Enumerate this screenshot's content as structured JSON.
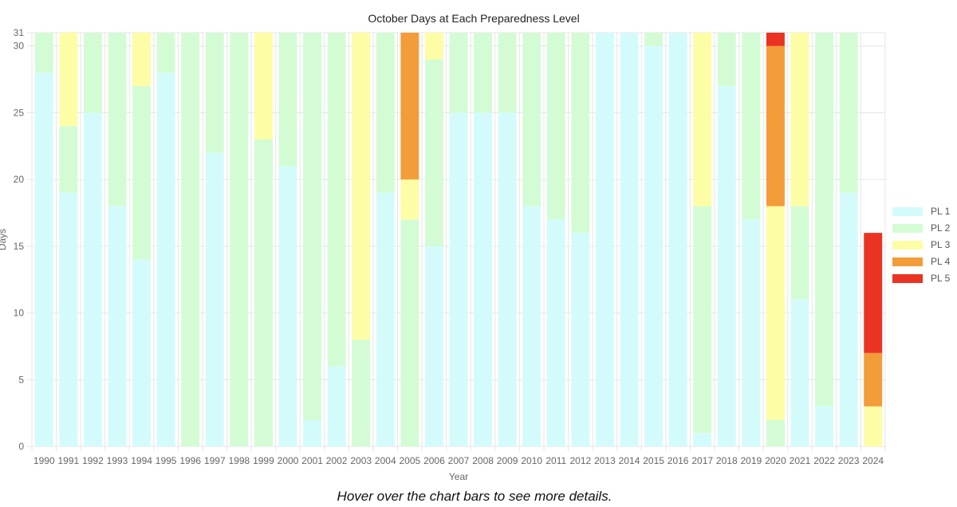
{
  "note": "Hover over the chart bars to see more details.",
  "chart_data": {
    "type": "bar",
    "stacked": true,
    "title": "October Days at Each Preparedness Level",
    "xlabel": "Year",
    "ylabel": "Days",
    "ylim": [
      0,
      31
    ],
    "yticks": [
      0,
      5,
      10,
      15,
      20,
      25,
      30,
      31
    ],
    "grid": true,
    "legend_position": "right",
    "categories": [
      "1990",
      "1991",
      "1992",
      "1993",
      "1994",
      "1995",
      "1996",
      "1997",
      "1998",
      "1999",
      "2000",
      "2001",
      "2002",
      "2003",
      "2004",
      "2005",
      "2006",
      "2007",
      "2008",
      "2009",
      "2010",
      "2011",
      "2012",
      "2013",
      "2014",
      "2015",
      "2016",
      "2017",
      "2018",
      "2019",
      "2020",
      "2021",
      "2022",
      "2023",
      "2024"
    ],
    "series": [
      {
        "name": "PL 1",
        "color": "#d4fbfb",
        "values": [
          28,
          19,
          25,
          18,
          14,
          28,
          0,
          22,
          0,
          0,
          21,
          2,
          6,
          0,
          19,
          0,
          15,
          25,
          25,
          25,
          18,
          17,
          16,
          31,
          31,
          30,
          31,
          1,
          27,
          17,
          0,
          11,
          3,
          19,
          0
        ]
      },
      {
        "name": "PL 2",
        "color": "#d4fcd4",
        "values": [
          3,
          5,
          6,
          13,
          13,
          3,
          31,
          9,
          31,
          23,
          10,
          29,
          25,
          8,
          12,
          17,
          14,
          6,
          6,
          6,
          13,
          14,
          15,
          0,
          0,
          1,
          0,
          17,
          4,
          14,
          2,
          7,
          28,
          12,
          0
        ]
      },
      {
        "name": "PL 3",
        "color": "#fdfda6",
        "values": [
          0,
          7,
          0,
          0,
          4,
          0,
          0,
          0,
          0,
          8,
          0,
          0,
          0,
          23,
          0,
          3,
          2,
          0,
          0,
          0,
          0,
          0,
          0,
          0,
          0,
          0,
          0,
          13,
          0,
          0,
          16,
          13,
          0,
          0,
          3
        ]
      },
      {
        "name": "PL 4",
        "color": "#f39c3a",
        "values": [
          0,
          0,
          0,
          0,
          0,
          0,
          0,
          0,
          0,
          0,
          0,
          0,
          0,
          0,
          0,
          11,
          0,
          0,
          0,
          0,
          0,
          0,
          0,
          0,
          0,
          0,
          0,
          0,
          0,
          0,
          12,
          0,
          0,
          0,
          4
        ]
      },
      {
        "name": "PL 5",
        "color": "#ea3323",
        "values": [
          0,
          0,
          0,
          0,
          0,
          0,
          0,
          0,
          0,
          0,
          0,
          0,
          0,
          0,
          0,
          0,
          0,
          0,
          0,
          0,
          0,
          0,
          0,
          0,
          0,
          0,
          0,
          0,
          0,
          0,
          1,
          0,
          0,
          0,
          9
        ]
      }
    ]
  }
}
